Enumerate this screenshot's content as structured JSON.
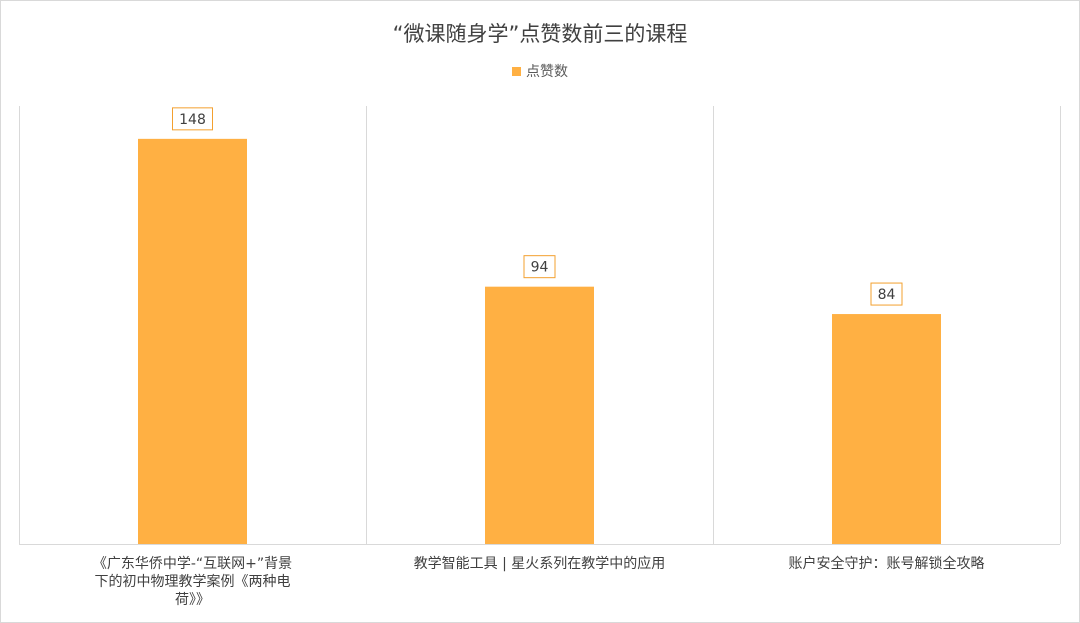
{
  "chart_data": {
    "type": "bar",
    "title": "“微课随身学”点赞数前三的课程",
    "legend": "点赞数",
    "categories": [
      "《广东华侨中学-“互联网+”背景下的初中物理教学案例《两种电荷》》",
      "教学智能工具 | 星火系列在教学中的应用",
      "账户安全守护：账号解锁全攻略"
    ],
    "series": [
      {
        "name": "点赞数",
        "values": [
          148,
          94,
          84
        ]
      }
    ],
    "ylim": [
      0,
      160
    ],
    "grid": "vertical category separators",
    "legend_position": "top-center",
    "colors": {
      "bar": "#FFB043",
      "label_border": "#F3A02F",
      "text": "#404040",
      "grid": "#d9d9d9"
    }
  }
}
